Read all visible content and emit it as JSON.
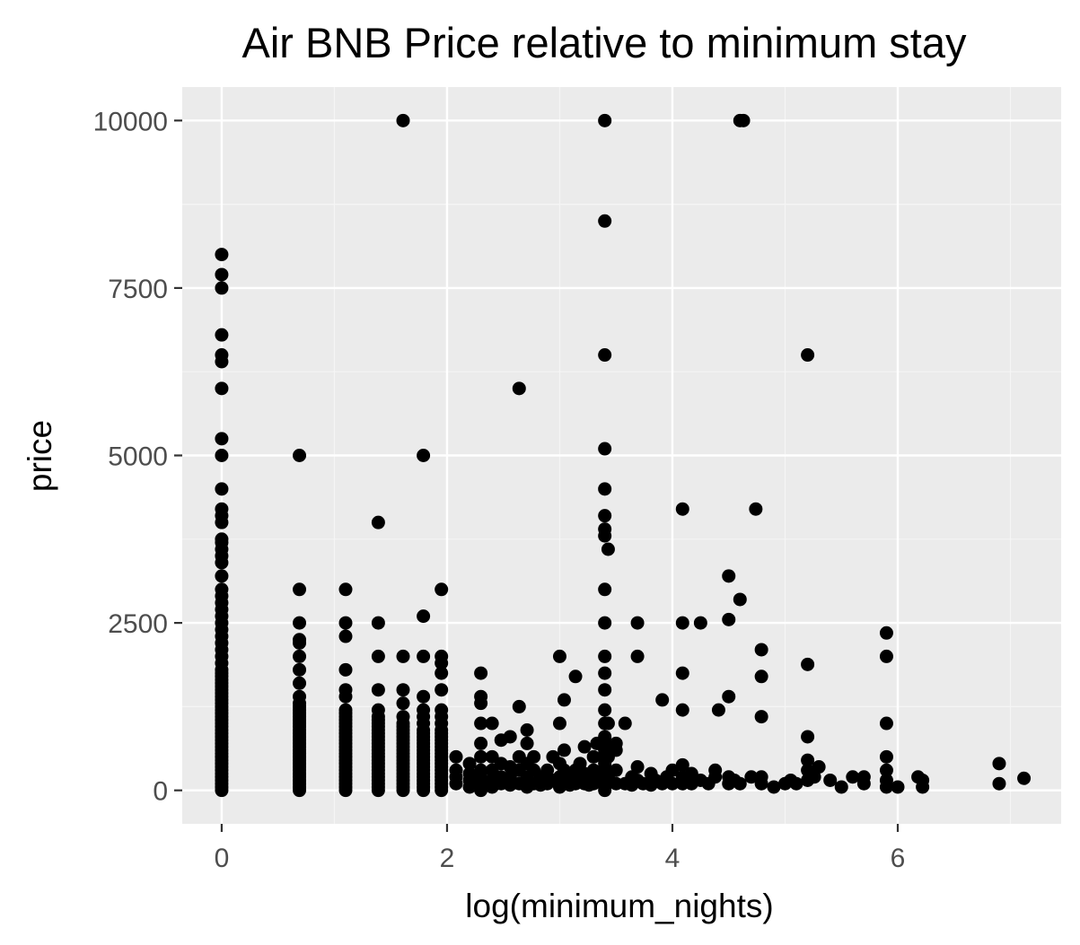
{
  "colors": {
    "panel_background": "#EBEBEB",
    "grid_major": "#FFFFFF",
    "grid_minor": "#F5F5F5",
    "point": "#000000",
    "tick_text": "#4D4D4D",
    "tick_mark": "#333333"
  },
  "chart_data": {
    "type": "scatter",
    "title": "Air BNB Price relative to minimum stay",
    "xlabel": "log(minimum_nights)",
    "ylabel": "price",
    "xlim": [
      -0.35,
      7.45
    ],
    "ylim": [
      -500,
      10500
    ],
    "x_ticks": [
      0,
      2,
      4,
      6
    ],
    "x_tick_labels": [
      "0",
      "2",
      "4",
      "6"
    ],
    "y_ticks": [
      0,
      2500,
      5000,
      7500,
      10000
    ],
    "y_tick_labels": [
      "0",
      "2500",
      "5000",
      "7500",
      "10000"
    ],
    "grid": true,
    "legend": "none",
    "points": [
      [
        0,
        0
      ],
      [
        0,
        50
      ],
      [
        0,
        100
      ],
      [
        0,
        150
      ],
      [
        0,
        200
      ],
      [
        0,
        250
      ],
      [
        0,
        300
      ],
      [
        0,
        350
      ],
      [
        0,
        400
      ],
      [
        0,
        450
      ],
      [
        0,
        500
      ],
      [
        0,
        550
      ],
      [
        0,
        600
      ],
      [
        0,
        650
      ],
      [
        0,
        700
      ],
      [
        0,
        750
      ],
      [
        0,
        800
      ],
      [
        0,
        850
      ],
      [
        0,
        900
      ],
      [
        0,
        950
      ],
      [
        0,
        1000
      ],
      [
        0,
        1050
      ],
      [
        0,
        1100
      ],
      [
        0,
        1150
      ],
      [
        0,
        1200
      ],
      [
        0,
        1250
      ],
      [
        0,
        1300
      ],
      [
        0,
        1350
      ],
      [
        0,
        1400
      ],
      [
        0,
        1450
      ],
      [
        0,
        1500
      ],
      [
        0,
        1550
      ],
      [
        0,
        1600
      ],
      [
        0,
        1650
      ],
      [
        0,
        1700
      ],
      [
        0,
        1750
      ],
      [
        0,
        1800
      ],
      [
        0,
        1900
      ],
      [
        0,
        2000
      ],
      [
        0,
        2100
      ],
      [
        0,
        2200
      ],
      [
        0,
        2300
      ],
      [
        0,
        2400
      ],
      [
        0,
        2500
      ],
      [
        0,
        2600
      ],
      [
        0,
        2700
      ],
      [
        0,
        2800
      ],
      [
        0,
        2900
      ],
      [
        0,
        3000
      ],
      [
        0,
        3200
      ],
      [
        0,
        3400
      ],
      [
        0,
        3500
      ],
      [
        0,
        3600
      ],
      [
        0,
        3700
      ],
      [
        0,
        3750
      ],
      [
        0,
        4000
      ],
      [
        0,
        4100
      ],
      [
        0,
        4200
      ],
      [
        0,
        4500
      ],
      [
        0,
        5000
      ],
      [
        0,
        5250
      ],
      [
        0,
        6000
      ],
      [
        0,
        6400
      ],
      [
        0,
        6500
      ],
      [
        0,
        6800
      ],
      [
        0,
        7500
      ],
      [
        0,
        7700
      ],
      [
        0,
        8000
      ],
      [
        0.69,
        0
      ],
      [
        0.69,
        50
      ],
      [
        0.69,
        100
      ],
      [
        0.69,
        150
      ],
      [
        0.69,
        200
      ],
      [
        0.69,
        250
      ],
      [
        0.69,
        300
      ],
      [
        0.69,
        350
      ],
      [
        0.69,
        400
      ],
      [
        0.69,
        450
      ],
      [
        0.69,
        500
      ],
      [
        0.69,
        550
      ],
      [
        0.69,
        600
      ],
      [
        0.69,
        650
      ],
      [
        0.69,
        700
      ],
      [
        0.69,
        750
      ],
      [
        0.69,
        800
      ],
      [
        0.69,
        850
      ],
      [
        0.69,
        900
      ],
      [
        0.69,
        950
      ],
      [
        0.69,
        1000
      ],
      [
        0.69,
        1050
      ],
      [
        0.69,
        1100
      ],
      [
        0.69,
        1150
      ],
      [
        0.69,
        1200
      ],
      [
        0.69,
        1250
      ],
      [
        0.69,
        1300
      ],
      [
        0.69,
        1400
      ],
      [
        0.69,
        1600
      ],
      [
        0.69,
        1800
      ],
      [
        0.69,
        2000
      ],
      [
        0.69,
        2200
      ],
      [
        0.69,
        2250
      ],
      [
        0.69,
        2500
      ],
      [
        0.69,
        3000
      ],
      [
        0.69,
        5000
      ],
      [
        1.1,
        0
      ],
      [
        1.1,
        50
      ],
      [
        1.1,
        100
      ],
      [
        1.1,
        150
      ],
      [
        1.1,
        200
      ],
      [
        1.1,
        250
      ],
      [
        1.1,
        300
      ],
      [
        1.1,
        350
      ],
      [
        1.1,
        400
      ],
      [
        1.1,
        450
      ],
      [
        1.1,
        500
      ],
      [
        1.1,
        550
      ],
      [
        1.1,
        600
      ],
      [
        1.1,
        650
      ],
      [
        1.1,
        700
      ],
      [
        1.1,
        750
      ],
      [
        1.1,
        800
      ],
      [
        1.1,
        850
      ],
      [
        1.1,
        900
      ],
      [
        1.1,
        950
      ],
      [
        1.1,
        1000
      ],
      [
        1.1,
        1050
      ],
      [
        1.1,
        1100
      ],
      [
        1.1,
        1150
      ],
      [
        1.1,
        1200
      ],
      [
        1.1,
        1400
      ],
      [
        1.1,
        1500
      ],
      [
        1.1,
        1800
      ],
      [
        1.1,
        2300
      ],
      [
        1.1,
        2500
      ],
      [
        1.1,
        3000
      ],
      [
        1.39,
        0
      ],
      [
        1.39,
        50
      ],
      [
        1.39,
        100
      ],
      [
        1.39,
        150
      ],
      [
        1.39,
        200
      ],
      [
        1.39,
        250
      ],
      [
        1.39,
        300
      ],
      [
        1.39,
        350
      ],
      [
        1.39,
        400
      ],
      [
        1.39,
        450
      ],
      [
        1.39,
        500
      ],
      [
        1.39,
        550
      ],
      [
        1.39,
        600
      ],
      [
        1.39,
        650
      ],
      [
        1.39,
        700
      ],
      [
        1.39,
        750
      ],
      [
        1.39,
        800
      ],
      [
        1.39,
        850
      ],
      [
        1.39,
        900
      ],
      [
        1.39,
        950
      ],
      [
        1.39,
        1000
      ],
      [
        1.39,
        1050
      ],
      [
        1.39,
        1100
      ],
      [
        1.39,
        1200
      ],
      [
        1.39,
        1500
      ],
      [
        1.39,
        2000
      ],
      [
        1.39,
        2500
      ],
      [
        1.39,
        4000
      ],
      [
        1.61,
        0
      ],
      [
        1.61,
        50
      ],
      [
        1.61,
        100
      ],
      [
        1.61,
        150
      ],
      [
        1.61,
        200
      ],
      [
        1.61,
        250
      ],
      [
        1.61,
        300
      ],
      [
        1.61,
        350
      ],
      [
        1.61,
        400
      ],
      [
        1.61,
        450
      ],
      [
        1.61,
        500
      ],
      [
        1.61,
        550
      ],
      [
        1.61,
        600
      ],
      [
        1.61,
        650
      ],
      [
        1.61,
        700
      ],
      [
        1.61,
        750
      ],
      [
        1.61,
        800
      ],
      [
        1.61,
        850
      ],
      [
        1.61,
        900
      ],
      [
        1.61,
        950
      ],
      [
        1.61,
        1000
      ],
      [
        1.61,
        1100
      ],
      [
        1.61,
        1300
      ],
      [
        1.61,
        1500
      ],
      [
        1.61,
        2000
      ],
      [
        1.61,
        10000
      ],
      [
        1.79,
        0
      ],
      [
        1.79,
        50
      ],
      [
        1.79,
        100
      ],
      [
        1.79,
        150
      ],
      [
        1.79,
        200
      ],
      [
        1.79,
        250
      ],
      [
        1.79,
        300
      ],
      [
        1.79,
        350
      ],
      [
        1.79,
        400
      ],
      [
        1.79,
        450
      ],
      [
        1.79,
        500
      ],
      [
        1.79,
        550
      ],
      [
        1.79,
        600
      ],
      [
        1.79,
        650
      ],
      [
        1.79,
        700
      ],
      [
        1.79,
        750
      ],
      [
        1.79,
        800
      ],
      [
        1.79,
        850
      ],
      [
        1.79,
        900
      ],
      [
        1.79,
        1000
      ],
      [
        1.79,
        1100
      ],
      [
        1.79,
        1200
      ],
      [
        1.79,
        1400
      ],
      [
        1.79,
        2000
      ],
      [
        1.79,
        2600
      ],
      [
        1.79,
        5000
      ],
      [
        1.95,
        0
      ],
      [
        1.95,
        50
      ],
      [
        1.95,
        100
      ],
      [
        1.95,
        150
      ],
      [
        1.95,
        200
      ],
      [
        1.95,
        250
      ],
      [
        1.95,
        300
      ],
      [
        1.95,
        350
      ],
      [
        1.95,
        400
      ],
      [
        1.95,
        450
      ],
      [
        1.95,
        500
      ],
      [
        1.95,
        550
      ],
      [
        1.95,
        600
      ],
      [
        1.95,
        650
      ],
      [
        1.95,
        700
      ],
      [
        1.95,
        750
      ],
      [
        1.95,
        800
      ],
      [
        1.95,
        850
      ],
      [
        1.95,
        900
      ],
      [
        1.95,
        1000
      ],
      [
        1.95,
        1100
      ],
      [
        1.95,
        1200
      ],
      [
        1.95,
        1500
      ],
      [
        1.95,
        1750
      ],
      [
        1.95,
        1900
      ],
      [
        1.95,
        2000
      ],
      [
        1.95,
        3000
      ],
      [
        2.08,
        100
      ],
      [
        2.08,
        200
      ],
      [
        2.08,
        300
      ],
      [
        2.08,
        500
      ],
      [
        2.2,
        50
      ],
      [
        2.2,
        150
      ],
      [
        2.2,
        250
      ],
      [
        2.2,
        400
      ],
      [
        2.3,
        0
      ],
      [
        2.3,
        100
      ],
      [
        2.3,
        200
      ],
      [
        2.3,
        300
      ],
      [
        2.3,
        500
      ],
      [
        2.3,
        700
      ],
      [
        2.3,
        1000
      ],
      [
        2.3,
        1300
      ],
      [
        2.3,
        1400
      ],
      [
        2.3,
        1750
      ],
      [
        2.4,
        50
      ],
      [
        2.4,
        150
      ],
      [
        2.4,
        300
      ],
      [
        2.4,
        500
      ],
      [
        2.4,
        1000
      ],
      [
        2.48,
        100
      ],
      [
        2.48,
        200
      ],
      [
        2.48,
        400
      ],
      [
        2.48,
        750
      ],
      [
        2.56,
        80
      ],
      [
        2.56,
        200
      ],
      [
        2.56,
        350
      ],
      [
        2.56,
        800
      ],
      [
        2.64,
        100
      ],
      [
        2.64,
        300
      ],
      [
        2.64,
        500
      ],
      [
        2.64,
        1250
      ],
      [
        2.64,
        6000
      ],
      [
        2.71,
        50
      ],
      [
        2.71,
        200
      ],
      [
        2.71,
        400
      ],
      [
        2.71,
        700
      ],
      [
        2.71,
        900
      ],
      [
        2.77,
        100
      ],
      [
        2.77,
        300
      ],
      [
        2.77,
        500
      ],
      [
        2.83,
        80
      ],
      [
        2.83,
        200
      ],
      [
        2.89,
        100
      ],
      [
        2.89,
        300
      ],
      [
        2.94,
        150
      ],
      [
        2.94,
        500
      ],
      [
        3.0,
        50
      ],
      [
        3.0,
        200
      ],
      [
        3.0,
        400
      ],
      [
        3.0,
        1000
      ],
      [
        3.0,
        2000
      ],
      [
        3.04,
        100
      ],
      [
        3.04,
        300
      ],
      [
        3.04,
        600
      ],
      [
        3.04,
        1350
      ],
      [
        3.09,
        80
      ],
      [
        3.09,
        250
      ],
      [
        3.14,
        100
      ],
      [
        3.14,
        300
      ],
      [
        3.14,
        1700
      ],
      [
        3.18,
        150
      ],
      [
        3.18,
        400
      ],
      [
        3.22,
        100
      ],
      [
        3.22,
        250
      ],
      [
        3.22,
        650
      ],
      [
        3.26,
        80
      ],
      [
        3.26,
        200
      ],
      [
        3.3,
        100
      ],
      [
        3.3,
        300
      ],
      [
        3.3,
        500
      ],
      [
        3.33,
        150
      ],
      [
        3.33,
        700
      ],
      [
        3.4,
        0
      ],
      [
        3.4,
        50
      ],
      [
        3.4,
        100
      ],
      [
        3.4,
        150
      ],
      [
        3.4,
        200
      ],
      [
        3.4,
        250
      ],
      [
        3.4,
        300
      ],
      [
        3.4,
        350
      ],
      [
        3.4,
        400
      ],
      [
        3.4,
        450
      ],
      [
        3.4,
        500
      ],
      [
        3.4,
        600
      ],
      [
        3.4,
        700
      ],
      [
        3.4,
        800
      ],
      [
        3.4,
        1000
      ],
      [
        3.4,
        1200
      ],
      [
        3.4,
        1500
      ],
      [
        3.4,
        1750
      ],
      [
        3.4,
        2000
      ],
      [
        3.4,
        2500
      ],
      [
        3.4,
        3000
      ],
      [
        3.4,
        3800
      ],
      [
        3.4,
        3900
      ],
      [
        3.4,
        4100
      ],
      [
        3.4,
        4500
      ],
      [
        3.4,
        5100
      ],
      [
        3.4,
        6500
      ],
      [
        3.4,
        8500
      ],
      [
        3.4,
        10000
      ],
      [
        3.43,
        200
      ],
      [
        3.43,
        500
      ],
      [
        3.43,
        1000
      ],
      [
        3.43,
        3600
      ],
      [
        3.5,
        100
      ],
      [
        3.5,
        300
      ],
      [
        3.5,
        600
      ],
      [
        3.5,
        700
      ],
      [
        3.58,
        100
      ],
      [
        3.58,
        1000
      ],
      [
        3.64,
        80
      ],
      [
        3.64,
        200
      ],
      [
        3.69,
        150
      ],
      [
        3.69,
        350
      ],
      [
        3.69,
        2000
      ],
      [
        3.69,
        2500
      ],
      [
        3.74,
        100
      ],
      [
        3.81,
        80
      ],
      [
        3.81,
        250
      ],
      [
        3.85,
        150
      ],
      [
        3.91,
        100
      ],
      [
        3.91,
        1350
      ],
      [
        3.95,
        200
      ],
      [
        4.0,
        100
      ],
      [
        4.0,
        300
      ],
      [
        4.09,
        100
      ],
      [
        4.09,
        200
      ],
      [
        4.09,
        380
      ],
      [
        4.09,
        1200
      ],
      [
        4.09,
        1750
      ],
      [
        4.09,
        2500
      ],
      [
        4.09,
        4200
      ],
      [
        4.17,
        100
      ],
      [
        4.17,
        250
      ],
      [
        4.25,
        2500
      ],
      [
        4.25,
        150
      ],
      [
        4.32,
        100
      ],
      [
        4.38,
        200
      ],
      [
        4.38,
        300
      ],
      [
        4.41,
        1200
      ],
      [
        4.5,
        100
      ],
      [
        4.5,
        200
      ],
      [
        4.5,
        1400
      ],
      [
        4.5,
        2550
      ],
      [
        4.5,
        3200
      ],
      [
        4.55,
        150
      ],
      [
        4.6,
        100
      ],
      [
        4.6,
        2850
      ],
      [
        4.6,
        10000
      ],
      [
        4.63,
        10000
      ],
      [
        4.7,
        200
      ],
      [
        4.74,
        4200
      ],
      [
        4.79,
        100
      ],
      [
        4.79,
        200
      ],
      [
        4.79,
        1100
      ],
      [
        4.79,
        1700
      ],
      [
        4.79,
        2100
      ],
      [
        4.9,
        50
      ],
      [
        5.0,
        100
      ],
      [
        5.05,
        150
      ],
      [
        5.1,
        100
      ],
      [
        5.2,
        150
      ],
      [
        5.2,
        300
      ],
      [
        5.2,
        450
      ],
      [
        5.2,
        800
      ],
      [
        5.2,
        1880
      ],
      [
        5.2,
        6500
      ],
      [
        5.26,
        200
      ],
      [
        5.3,
        350
      ],
      [
        5.4,
        150
      ],
      [
        5.5,
        50
      ],
      [
        5.6,
        200
      ],
      [
        5.7,
        100
      ],
      [
        5.7,
        200
      ],
      [
        5.9,
        50
      ],
      [
        5.9,
        150
      ],
      [
        5.9,
        300
      ],
      [
        5.9,
        500
      ],
      [
        5.9,
        1000
      ],
      [
        5.9,
        2000
      ],
      [
        5.9,
        2350
      ],
      [
        6.0,
        50
      ],
      [
        6.18,
        200
      ],
      [
        6.22,
        50
      ],
      [
        6.22,
        150
      ],
      [
        6.9,
        100
      ],
      [
        6.9,
        400
      ],
      [
        7.12,
        180
      ]
    ]
  }
}
